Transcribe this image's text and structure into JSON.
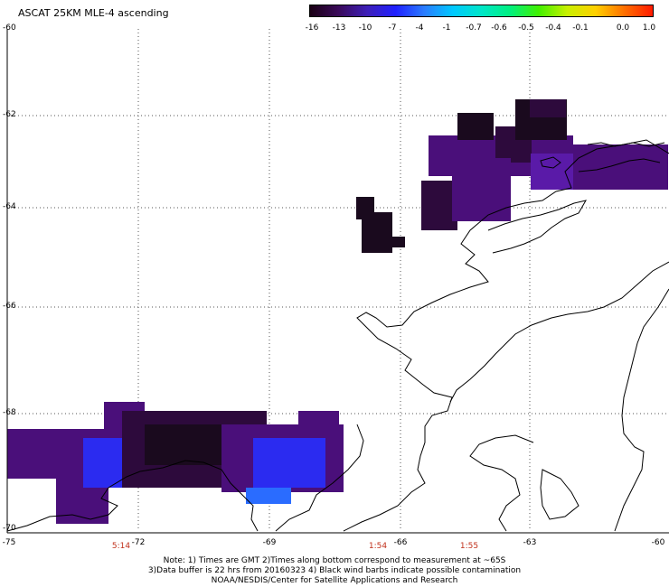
{
  "title": "ASCAT 25KM MLE-4 ascending",
  "colorbar": {
    "labels": [
      "-16",
      "-13",
      "-10",
      "-7",
      "-4",
      "-1",
      "-0.7",
      "-0.6",
      "-0.5",
      "-0.4",
      "-0.1",
      "0.0",
      "1.0"
    ],
    "colors": [
      "#1a0014",
      "#3a0a5a",
      "#3d1fb8",
      "#2020ff",
      "#2a7cff",
      "#00c8ff",
      "#00e6c8",
      "#00f080",
      "#40f000",
      "#c8f000",
      "#ffd000",
      "#ff7000",
      "#ff1a00"
    ]
  },
  "y_ticks": [
    "-60",
    "-62",
    "-64",
    "-66",
    "-68",
    "-70"
  ],
  "x_ticks": [
    "-75",
    "-72",
    "-69",
    "-66",
    "-63",
    "-60"
  ],
  "times": [
    "5:14",
    "1:54",
    "1:55"
  ],
  "notes": [
    "Note: 1) Times are GMT 2)Times along bottom correspond to measurement at ~65S",
    "3)Data buffer is 22 hrs from 20160323 4) Black wind barbs indicate possible contamination",
    "NOAA/NESDIS/Center for Satellite Applications and Research"
  ],
  "legend_colors": {
    "dark": "#1a0a1e",
    "deep_purple": "#2d0a3c",
    "purple": "#4a0f7a",
    "violet": "#5a1aa8",
    "blue": "#2b2bf0",
    "bright_blue": "#2a6cff"
  }
}
